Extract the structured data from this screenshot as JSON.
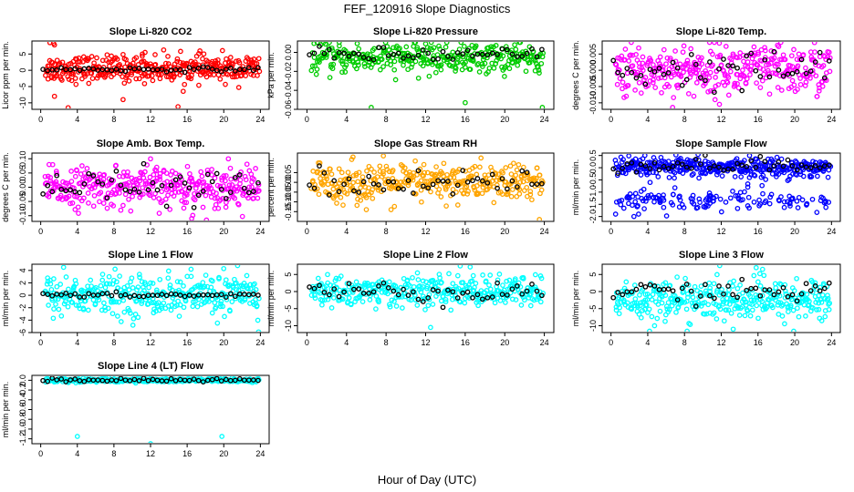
{
  "figure": {
    "title": "FEF_120916  Slope Diagnostics",
    "xlabel": "Hour of Day (UTC)"
  },
  "chart_data": [
    {
      "type": "scatter",
      "title": "Slope Li-820 CO2",
      "ylabel": "Licor ppm per min.",
      "xlim": [
        0,
        24
      ],
      "ylim": [
        -12,
        9
      ],
      "xticks": [
        "0",
        "4",
        "8",
        "12",
        "16",
        "20",
        "24"
      ],
      "yticks": [
        "-10",
        "-5",
        "0",
        "5"
      ],
      "color": "#ff0000",
      "spread_center": 0.5,
      "spread_sd": 2.0,
      "black_center": 0.3,
      "black_sd": 0.35,
      "outliers": [
        [
          1.0,
          8.5
        ],
        [
          1.4,
          8.3
        ],
        [
          1.5,
          7.8
        ],
        [
          11.1,
          5.0
        ],
        [
          11.4,
          5.5
        ],
        [
          3.0,
          -11.5
        ],
        [
          1.5,
          -8.0
        ],
        [
          9.0,
          -9.0
        ],
        [
          15.0,
          -11.2
        ]
      ]
    },
    {
      "type": "scatter",
      "title": "Slope Li-820 Pressure",
      "ylabel": "kPa per min.",
      "xlim": [
        0,
        24
      ],
      "ylim": [
        -0.06,
        0.012
      ],
      "xticks": [
        "0",
        "4",
        "8",
        "12",
        "16",
        "20",
        "24"
      ],
      "yticks": [
        "-0.06",
        "-0.04",
        "-0.02",
        "0.00"
      ],
      "color": "#00cc00",
      "spread_center": -0.006,
      "spread_sd": 0.008,
      "black_center": -0.003,
      "black_sd": 0.004,
      "outliers": [
        [
          6.5,
          -0.058
        ],
        [
          16.0,
          -0.053
        ],
        [
          23.8,
          -0.058
        ],
        [
          21.0,
          0.008
        ],
        [
          12.0,
          0.009
        ]
      ]
    },
    {
      "type": "scatter",
      "title": "Slope Li-820 Temp.",
      "ylabel": "degrees C per min.",
      "xlim": [
        0,
        24
      ],
      "ylim": [
        -0.012,
        0.009
      ],
      "xticks": [
        "0",
        "4",
        "8",
        "12",
        "16",
        "20",
        "24"
      ],
      "yticks": [
        "-0.010",
        "-0.005",
        "0.000",
        "0.005"
      ],
      "color": "#ff00ff",
      "spread_center": 0.0,
      "spread_sd": 0.004,
      "black_center": 0.0,
      "black_sd": 0.003,
      "outliers": []
    },
    {
      "type": "scatter",
      "title": "Slope Amb. Box Temp.",
      "ylabel": "degrees C per min.",
      "xlim": [
        0,
        24
      ],
      "ylim": [
        -0.12,
        0.12
      ],
      "xticks": [
        "0",
        "4",
        "8",
        "12",
        "16",
        "20",
        "24"
      ],
      "yticks": [
        "-0.10",
        "-0.05",
        "0.00",
        "0.05",
        "0.10"
      ],
      "color": "#ff00ff",
      "spread_center": 0.0,
      "spread_sd": 0.035,
      "black_center": 0.0,
      "black_sd": 0.03,
      "outliers": [
        [
          16.5,
          -0.11
        ],
        [
          12.0,
          0.1
        ],
        [
          20.5,
          0.1
        ]
      ]
    },
    {
      "type": "scatter",
      "title": "Slope Gas Stream RH",
      "ylabel": "percent per min.",
      "xlim": [
        0,
        24
      ],
      "ylim": [
        -0.2,
        0.15
      ],
      "xticks": [
        "0",
        "4",
        "8",
        "12",
        "16",
        "20",
        "24"
      ],
      "yticks": [
        "-0.15",
        "-0.10",
        "-0.05",
        "0.00",
        "0.05"
      ],
      "color": "#ffa500",
      "spread_center": 0.0,
      "spread_sd": 0.05,
      "black_center": 0.0,
      "black_sd": 0.04,
      "outliers": [
        [
          6.0,
          -0.14
        ],
        [
          23.5,
          -0.19
        ],
        [
          8.5,
          -0.14
        ]
      ]
    },
    {
      "type": "scatter",
      "title": "Slope Sample Flow",
      "ylabel": "ml/min per min.",
      "xlim": [
        0,
        24
      ],
      "ylim": [
        -2.2,
        0.6
      ],
      "xticks": [
        "0",
        "4",
        "8",
        "12",
        "16",
        "20",
        "24"
      ],
      "yticks": [
        "-2.0",
        "-1.5",
        "-1.0",
        "-0.5",
        "0.0",
        "0.5"
      ],
      "color": "#0000ff",
      "spread_center": 0.0,
      "spread_sd": 0.2,
      "black_center": 0.1,
      "black_sd": 0.15,
      "band2_center": -1.3,
      "band2_sd": 0.2,
      "outliers": [
        [
          2.5,
          -2.0
        ],
        [
          3.0,
          -1.9
        ],
        [
          0.5,
          -1.9
        ]
      ]
    },
    {
      "type": "scatter",
      "title": "Slope Line 1 Flow",
      "ylabel": "ml/min per min.",
      "xlim": [
        0,
        24
      ],
      "ylim": [
        -6,
        5
      ],
      "xticks": [
        "0",
        "4",
        "8",
        "12",
        "16",
        "20",
        "24"
      ],
      "yticks": [
        "-6",
        "-4",
        "-2",
        "0",
        "2",
        "4"
      ],
      "color": "#00ffff",
      "spread_center": 0.0,
      "spread_sd": 1.6,
      "black_center": 0.0,
      "black_sd": 0.2,
      "outliers": [
        [
          23.8,
          -5.9
        ],
        [
          2.5,
          4.5
        ],
        [
          20.0,
          4.3
        ]
      ]
    },
    {
      "type": "scatter",
      "title": "Slope Line 2 Flow",
      "ylabel": "ml/min per min.",
      "xlim": [
        0,
        24
      ],
      "ylim": [
        -12,
        8
      ],
      "xticks": [
        "0",
        "4",
        "8",
        "12",
        "16",
        "20",
        "24"
      ],
      "yticks": [
        "-10",
        "-5",
        "0",
        "5"
      ],
      "color": "#00ffff",
      "spread_center": 0.0,
      "spread_sd": 2.2,
      "black_center": 0.0,
      "black_sd": 1.5,
      "outliers": [
        [
          12.5,
          -10.5
        ],
        [
          15.5,
          7.5
        ],
        [
          16.5,
          7.2
        ]
      ]
    },
    {
      "type": "scatter",
      "title": "Slope Line 3 Flow",
      "ylabel": "ml/min per min.",
      "xlim": [
        0,
        24
      ],
      "ylim": [
        -12,
        8
      ],
      "xticks": [
        "0",
        "4",
        "8",
        "12",
        "16",
        "20",
        "24"
      ],
      "yticks": [
        "-10",
        "-5",
        "0",
        "5"
      ],
      "color": "#00ffff",
      "spread_center": -2.5,
      "spread_sd": 3.0,
      "black_center": 0.0,
      "black_sd": 1.5,
      "outliers": [
        [
          13.3,
          -11.0
        ],
        [
          15.8,
          7.0
        ],
        [
          16.5,
          6.5
        ]
      ]
    },
    {
      "type": "scatter",
      "title": "Slope Line 4 (LT) Flow",
      "ylabel": "ml/min per min.",
      "xlim": [
        0,
        24
      ],
      "ylim": [
        -1.3,
        0.1
      ],
      "xticks": [
        "0",
        "4",
        "8",
        "12",
        "16",
        "20",
        "24"
      ],
      "yticks": [
        "-1.2",
        "-1.0",
        "-0.8",
        "-0.6",
        "-0.4",
        "-0.2",
        "0.0"
      ],
      "color": "#00ffff",
      "spread_center": 0.0,
      "spread_sd": 0.02,
      "black_center": 0.0,
      "black_sd": 0.015,
      "outliers": [
        [
          4.0,
          -1.15
        ],
        [
          19.8,
          -1.15
        ],
        [
          12.0,
          -1.3
        ]
      ]
    }
  ]
}
